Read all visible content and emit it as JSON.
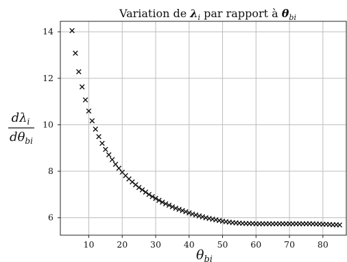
{
  "chart_data": {
    "type": "scatter",
    "title": "Variation de λi par rapport à θbi",
    "title_parts": {
      "prefix": "Variation de ",
      "lambda": "λ",
      "lambda_sub": "i",
      "middle": " par rapport à ",
      "theta": "θ",
      "theta_sub": "bi"
    },
    "xlabel": {
      "symbol": "θ",
      "sub": "bi"
    },
    "ylabel": {
      "numerator": "dλ",
      "numerator_sub": "i",
      "denominator": "dθ",
      "denominator_sub": "bi"
    },
    "xlim": [
      1.5,
      87
    ],
    "ylim": [
      5.25,
      14.45
    ],
    "xticks": [
      10,
      20,
      30,
      40,
      50,
      60,
      70,
      80
    ],
    "yticks": [
      6,
      8,
      10,
      12,
      14
    ],
    "grid": true,
    "marker": "x",
    "x": [
      5,
      6,
      7,
      8,
      9,
      10,
      11,
      12,
      13,
      14,
      15,
      16,
      17,
      18,
      19,
      20,
      21,
      22,
      23,
      24,
      25,
      26,
      27,
      28,
      29,
      30,
      31,
      32,
      33,
      34,
      35,
      36,
      37,
      38,
      39,
      40,
      41,
      42,
      43,
      44,
      45,
      46,
      47,
      48,
      49,
      50,
      51,
      52,
      53,
      54,
      55,
      56,
      57,
      58,
      59,
      60,
      61,
      62,
      63,
      64,
      65,
      66,
      67,
      68,
      69,
      70,
      71,
      72,
      73,
      74,
      75,
      76,
      77,
      78,
      79,
      80,
      81,
      82,
      83,
      84,
      85
    ],
    "y": [
      14.05,
      13.08,
      12.28,
      11.63,
      11.07,
      10.59,
      10.17,
      9.81,
      9.49,
      9.2,
      8.94,
      8.71,
      8.5,
      8.3,
      8.13,
      7.96,
      7.81,
      7.67,
      7.54,
      7.42,
      7.3,
      7.2,
      7.1,
      7.0,
      6.91,
      6.83,
      6.75,
      6.67,
      6.6,
      6.54,
      6.47,
      6.41,
      6.36,
      6.31,
      6.26,
      6.21,
      6.16,
      6.12,
      6.08,
      6.04,
      6.0,
      5.97,
      5.94,
      5.91,
      5.88,
      5.85,
      5.83,
      5.81,
      5.79,
      5.78,
      5.77,
      5.76,
      5.75,
      5.75,
      5.75,
      5.74,
      5.74,
      5.74,
      5.74,
      5.74,
      5.74,
      5.74,
      5.74,
      5.74,
      5.74,
      5.74,
      5.74,
      5.74,
      5.74,
      5.74,
      5.74,
      5.74,
      5.74,
      5.73,
      5.73,
      5.72,
      5.72,
      5.71,
      5.7,
      5.7,
      5.69
    ]
  }
}
